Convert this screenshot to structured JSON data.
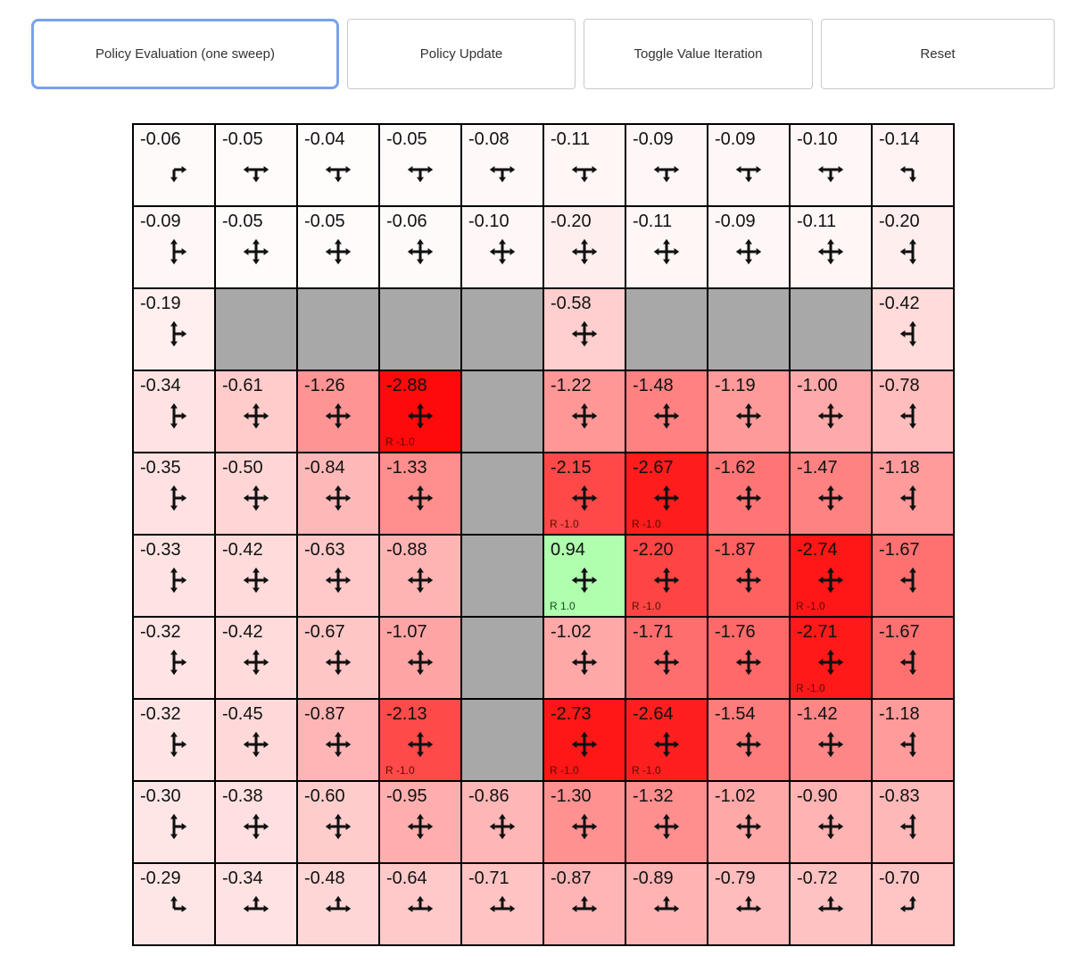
{
  "toolbar": {
    "buttons": [
      {
        "label": "Policy Evaluation (one sweep)",
        "focused": true
      },
      {
        "label": "Policy Update",
        "focused": false
      },
      {
        "label": "Toggle Value Iteration",
        "focused": false
      },
      {
        "label": "Reset",
        "focused": false
      }
    ]
  },
  "colors": {
    "background": "#ffffff",
    "wall_fill": "#a8a8a8",
    "cell_border": "#000000",
    "arrow": "#101010",
    "value_text": "#111111",
    "reward_text_negative": "#541000",
    "reward_text_positive": "#14501c",
    "focus_ring": "#79a1ee",
    "button_border": "#c9c9c9",
    "button_text": "#333333",
    "value_scale_max": 3
  },
  "grid": {
    "rows": 10,
    "cols": 10,
    "cells": [
      [
        {
          "v": "-0.06",
          "a": "RD"
        },
        {
          "v": "-0.05",
          "a": "LRD"
        },
        {
          "v": "-0.04",
          "a": "LRD"
        },
        {
          "v": "-0.05",
          "a": "LRD"
        },
        {
          "v": "-0.08",
          "a": "LRD"
        },
        {
          "v": "-0.11",
          "a": "LRD"
        },
        {
          "v": "-0.09",
          "a": "LRD"
        },
        {
          "v": "-0.09",
          "a": "LRD"
        },
        {
          "v": "-0.10",
          "a": "LRD"
        },
        {
          "v": "-0.14",
          "a": "LD"
        }
      ],
      [
        {
          "v": "-0.09",
          "a": "URD"
        },
        {
          "v": "-0.05",
          "a": "ULRD"
        },
        {
          "v": "-0.05",
          "a": "ULRD"
        },
        {
          "v": "-0.06",
          "a": "ULRD"
        },
        {
          "v": "-0.10",
          "a": "ULRD"
        },
        {
          "v": "-0.20",
          "a": "ULRD"
        },
        {
          "v": "-0.11",
          "a": "ULRD"
        },
        {
          "v": "-0.09",
          "a": "ULRD"
        },
        {
          "v": "-0.11",
          "a": "ULRD"
        },
        {
          "v": "-0.20",
          "a": "ULD"
        }
      ],
      [
        {
          "v": "-0.19",
          "a": "URD"
        },
        {
          "wall": true
        },
        {
          "wall": true
        },
        {
          "wall": true
        },
        {
          "wall": true
        },
        {
          "v": "-0.58",
          "a": "ULRD"
        },
        {
          "wall": true
        },
        {
          "wall": true
        },
        {
          "wall": true
        },
        {
          "v": "-0.42",
          "a": "ULD"
        }
      ],
      [
        {
          "v": "-0.34",
          "a": "URD"
        },
        {
          "v": "-0.61",
          "a": "ULRD"
        },
        {
          "v": "-1.26",
          "a": "ULRD"
        },
        {
          "v": "-2.88",
          "a": "ULRD",
          "r": "R -1.0"
        },
        {
          "wall": true
        },
        {
          "v": "-1.22",
          "a": "ULRD"
        },
        {
          "v": "-1.48",
          "a": "ULRD"
        },
        {
          "v": "-1.19",
          "a": "ULRD"
        },
        {
          "v": "-1.00",
          "a": "ULRD"
        },
        {
          "v": "-0.78",
          "a": "ULD"
        }
      ],
      [
        {
          "v": "-0.35",
          "a": "URD"
        },
        {
          "v": "-0.50",
          "a": "ULRD"
        },
        {
          "v": "-0.84",
          "a": "ULRD"
        },
        {
          "v": "-1.33",
          "a": "ULRD"
        },
        {
          "wall": true
        },
        {
          "v": "-2.15",
          "a": "ULRD",
          "r": "R -1.0"
        },
        {
          "v": "-2.67",
          "a": "ULRD",
          "r": "R -1.0"
        },
        {
          "v": "-1.62",
          "a": "ULRD"
        },
        {
          "v": "-1.47",
          "a": "ULRD"
        },
        {
          "v": "-1.18",
          "a": "ULD"
        }
      ],
      [
        {
          "v": "-0.33",
          "a": "URD"
        },
        {
          "v": "-0.42",
          "a": "ULRD"
        },
        {
          "v": "-0.63",
          "a": "ULRD"
        },
        {
          "v": "-0.88",
          "a": "ULRD"
        },
        {
          "wall": true
        },
        {
          "v": "0.94",
          "a": "ULRD",
          "r": "R 1.0"
        },
        {
          "v": "-2.20",
          "a": "ULRD",
          "r": "R -1.0"
        },
        {
          "v": "-1.87",
          "a": "ULRD"
        },
        {
          "v": "-2.74",
          "a": "ULRD",
          "r": "R -1.0"
        },
        {
          "v": "-1.67",
          "a": "ULD"
        }
      ],
      [
        {
          "v": "-0.32",
          "a": "URD"
        },
        {
          "v": "-0.42",
          "a": "ULRD"
        },
        {
          "v": "-0.67",
          "a": "ULRD"
        },
        {
          "v": "-1.07",
          "a": "ULRD"
        },
        {
          "wall": true
        },
        {
          "v": "-1.02",
          "a": "ULRD"
        },
        {
          "v": "-1.71",
          "a": "ULRD"
        },
        {
          "v": "-1.76",
          "a": "ULRD"
        },
        {
          "v": "-2.71",
          "a": "ULRD",
          "r": "R -1.0"
        },
        {
          "v": "-1.67",
          "a": "ULD"
        }
      ],
      [
        {
          "v": "-0.32",
          "a": "URD"
        },
        {
          "v": "-0.45",
          "a": "ULRD"
        },
        {
          "v": "-0.87",
          "a": "ULRD"
        },
        {
          "v": "-2.13",
          "a": "ULRD",
          "r": "R -1.0"
        },
        {
          "wall": true
        },
        {
          "v": "-2.73",
          "a": "ULRD",
          "r": "R -1.0"
        },
        {
          "v": "-2.64",
          "a": "ULRD",
          "r": "R -1.0"
        },
        {
          "v": "-1.54",
          "a": "ULRD"
        },
        {
          "v": "-1.42",
          "a": "ULRD"
        },
        {
          "v": "-1.18",
          "a": "ULD"
        }
      ],
      [
        {
          "v": "-0.30",
          "a": "URD"
        },
        {
          "v": "-0.38",
          "a": "ULRD"
        },
        {
          "v": "-0.60",
          "a": "ULRD"
        },
        {
          "v": "-0.95",
          "a": "ULRD"
        },
        {
          "v": "-0.86",
          "a": "ULRD"
        },
        {
          "v": "-1.30",
          "a": "ULRD"
        },
        {
          "v": "-1.32",
          "a": "ULRD"
        },
        {
          "v": "-1.02",
          "a": "ULRD"
        },
        {
          "v": "-0.90",
          "a": "ULRD"
        },
        {
          "v": "-0.83",
          "a": "ULD"
        }
      ],
      [
        {
          "v": "-0.29",
          "a": "UR"
        },
        {
          "v": "-0.34",
          "a": "ULR"
        },
        {
          "v": "-0.48",
          "a": "ULR"
        },
        {
          "v": "-0.64",
          "a": "ULR"
        },
        {
          "v": "-0.71",
          "a": "ULR"
        },
        {
          "v": "-0.87",
          "a": "ULR"
        },
        {
          "v": "-0.89",
          "a": "ULR"
        },
        {
          "v": "-0.79",
          "a": "ULR"
        },
        {
          "v": "-0.72",
          "a": "ULR"
        },
        {
          "v": "-0.70",
          "a": "UL"
        }
      ]
    ]
  }
}
